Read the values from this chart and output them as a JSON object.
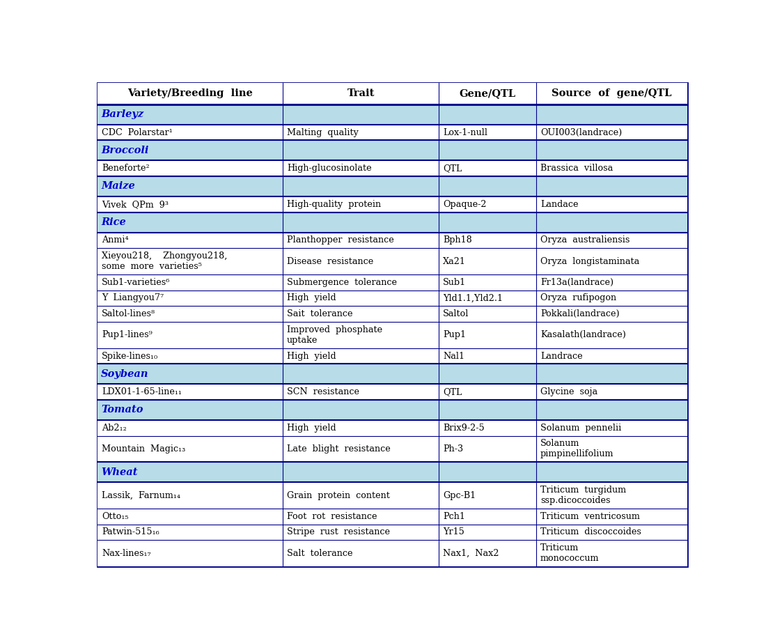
{
  "fig_width": 11.0,
  "fig_height": 9.23,
  "header": [
    "Variety/Breeding  line",
    "Trait",
    "Gene/QTL",
    "Source  of  gene/QTL"
  ],
  "section_bg": "#b8dce8",
  "outer_border_color": "#00008B",
  "section_text_color": "#0000CD",
  "sections": [
    {
      "name": "Barleyz",
      "rows": [
        {
          "variety": "CDC  Polarstar¹",
          "trait": "Malting  quality",
          "gene": "Lox-1-null",
          "source": "OUI003(landrace)",
          "nlines": 1
        }
      ]
    },
    {
      "name": "Broccoli",
      "rows": [
        {
          "variety": "Beneforte²",
          "trait": "High-glucosinolate",
          "gene": "QTL",
          "source": "Brassica  villosa",
          "nlines": 1
        }
      ]
    },
    {
      "name": "Maize",
      "rows": [
        {
          "variety": "Vivek  QPm  9³",
          "trait": "High-quality  protein",
          "gene": "Opaque-2",
          "source": "Landace",
          "nlines": 1
        }
      ]
    },
    {
      "name": "Rice",
      "rows": [
        {
          "variety": "Anmi⁴",
          "trait": "Planthopper  resistance",
          "gene": "Bph18",
          "source": "Oryza  australiensis",
          "nlines": 1
        },
        {
          "variety": "Xieyou218,    Zhongyou218,\nsome  more  varieties⁵",
          "trait": "Disease  resistance",
          "gene": "Xa21",
          "source": "Oryza  longistaminata",
          "nlines": 2
        },
        {
          "variety": "Sub1-varieties⁶",
          "trait": "Submergence  tolerance",
          "gene": "Sub1",
          "source": "Fr13a(landrace)",
          "nlines": 1
        },
        {
          "variety": "Y  Liangyou7⁷",
          "trait": "High  yield",
          "gene": "Yld1.1,Yld2.1",
          "source": "Oryza  rufipogon",
          "nlines": 1
        },
        {
          "variety": "Saltol-lines⁸",
          "trait": "Sait  tolerance",
          "gene": "Saltol",
          "source": "Pokkali(landrace)",
          "nlines": 1
        },
        {
          "variety": "Pup1-lines⁹",
          "trait": "Improved  phosphate\nuptake",
          "gene": "Pup1",
          "source": "Kasalath(landrace)",
          "nlines": 2
        },
        {
          "variety": "Spike-lines₁₀",
          "trait": "High  yield",
          "gene": "Nal1",
          "source": "Landrace",
          "nlines": 1
        }
      ]
    },
    {
      "name": "Soybean",
      "rows": [
        {
          "variety": "LDX01-1-65-line₁₁",
          "trait": "SCN  resistance",
          "gene": "QTL",
          "source": "Glycine  soja",
          "nlines": 1
        }
      ]
    },
    {
      "name": "Tomato",
      "rows": [
        {
          "variety": "Ab2₁₂",
          "trait": "High  yield",
          "gene": "Brix9-2-5",
          "source": "Solanum  pennelii",
          "nlines": 1
        },
        {
          "variety": "Mountain  Magic₁₃",
          "trait": "Late  blight  resistance",
          "gene": "Ph-3",
          "source": "Solanum\npimpinellifolium",
          "nlines": 2
        }
      ]
    },
    {
      "name": "Wheat",
      "rows": [
        {
          "variety": "Lassik,  Farnum₁₄",
          "trait": "Grain  protein  content",
          "gene": "Gpc-B1",
          "source": "Triticum  turgidum\nssp.dicoccoides",
          "nlines": 2
        },
        {
          "variety": "Otto₁₅",
          "trait": "Foot  rot  resistance",
          "gene": "Pch1",
          "source": "Triticum  ventricosum",
          "nlines": 1
        },
        {
          "variety": "Patwin-515₁₆",
          "trait": "Stripe  rust  resistance",
          "gene": "Yr15",
          "source": "Triticum  discoccoides",
          "nlines": 1
        },
        {
          "variety": "Nax-lines₁₇",
          "trait": "Salt  tolerance",
          "gene": "Nax1,  Nax2",
          "source": "Triticum\nmonococcum",
          "nlines": 2
        }
      ]
    }
  ]
}
